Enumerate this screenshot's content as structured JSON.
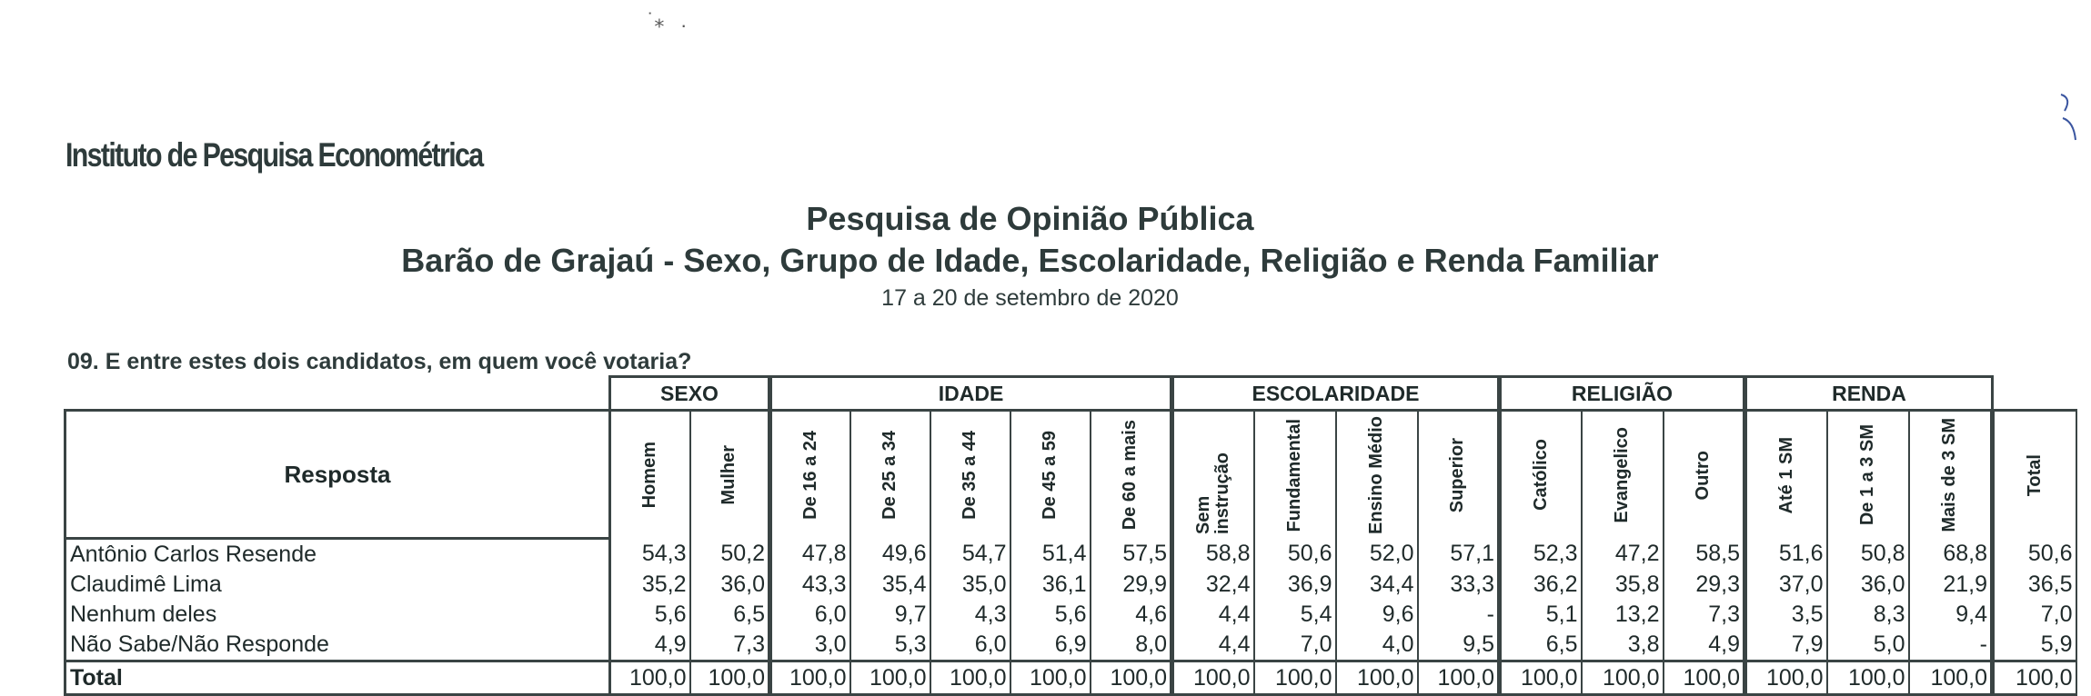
{
  "institute": "Instituto de Pesquisa Econométrica",
  "title": "Pesquisa de Opinião Pública",
  "subtitle": "Barão de Grajaú - Sexo, Grupo de Idade, Escolaridade, Religião e Renda Familiar",
  "date": "17 a 20 de setembro de 2020",
  "question": "09. E entre estes dois candidatos, em quem você votaria?",
  "groups": {
    "sexo": "SEXO",
    "idade": "IDADE",
    "escolaridade": "ESCOLARIDADE",
    "religiao": "RELIGIÃO",
    "renda": "RENDA"
  },
  "columns": {
    "resposta": "Resposta",
    "c1": "Homem",
    "c2": "Mulher",
    "c3": "De 16 a 24",
    "c4": "De 25 a 34",
    "c5": "De 35 a 44",
    "c6": "De 45 a 59",
    "c7": "De 60 a mais",
    "c8": "Sem instrução",
    "c9": "Fundamental",
    "c10": "Ensino Médio",
    "c11": "Superior",
    "c12": "Católico",
    "c13": "Evangelico",
    "c14": "Outro",
    "c15": "Até 1 SM",
    "c16": "De 1 a 3 SM",
    "c17": "Mais de 3 SM",
    "c18": "Total"
  },
  "rows": [
    {
      "label": "Antônio Carlos Resende",
      "v": [
        "54,3",
        "50,2",
        "47,8",
        "49,6",
        "54,7",
        "51,4",
        "57,5",
        "58,8",
        "50,6",
        "52,0",
        "57,1",
        "52,3",
        "47,2",
        "58,5",
        "51,6",
        "50,8",
        "68,8",
        "50,6"
      ]
    },
    {
      "label": "Claudimê Lima",
      "v": [
        "35,2",
        "36,0",
        "43,3",
        "35,4",
        "35,0",
        "36,1",
        "29,9",
        "32,4",
        "36,9",
        "34,4",
        "33,3",
        "36,2",
        "35,8",
        "29,3",
        "37,0",
        "36,0",
        "21,9",
        "36,5"
      ]
    },
    {
      "label": "Nenhum deles",
      "v": [
        "5,6",
        "6,5",
        "6,0",
        "9,7",
        "4,3",
        "5,6",
        "4,6",
        "4,4",
        "5,4",
        "9,6",
        "-",
        "5,1",
        "13,2",
        "7,3",
        "3,5",
        "8,3",
        "9,4",
        "7,0"
      ]
    },
    {
      "label": "Não Sabe/Não Responde",
      "v": [
        "4,9",
        "7,3",
        "3,0",
        "5,3",
        "6,0",
        "6,9",
        "8,0",
        "4,4",
        "7,0",
        "4,0",
        "9,5",
        "6,5",
        "3,8",
        "4,9",
        "7,9",
        "5,0",
        "-",
        "5,9"
      ]
    },
    {
      "label": "Total",
      "v": [
        "100,0",
        "100,0",
        "100,0",
        "100,0",
        "100,0",
        "100,0",
        "100,0",
        "100,0",
        "100,0",
        "100,0",
        "100,0",
        "100,0",
        "100,0",
        "100,0",
        "100,0",
        "100,0",
        "100,0",
        "100,0"
      ]
    }
  ]
}
